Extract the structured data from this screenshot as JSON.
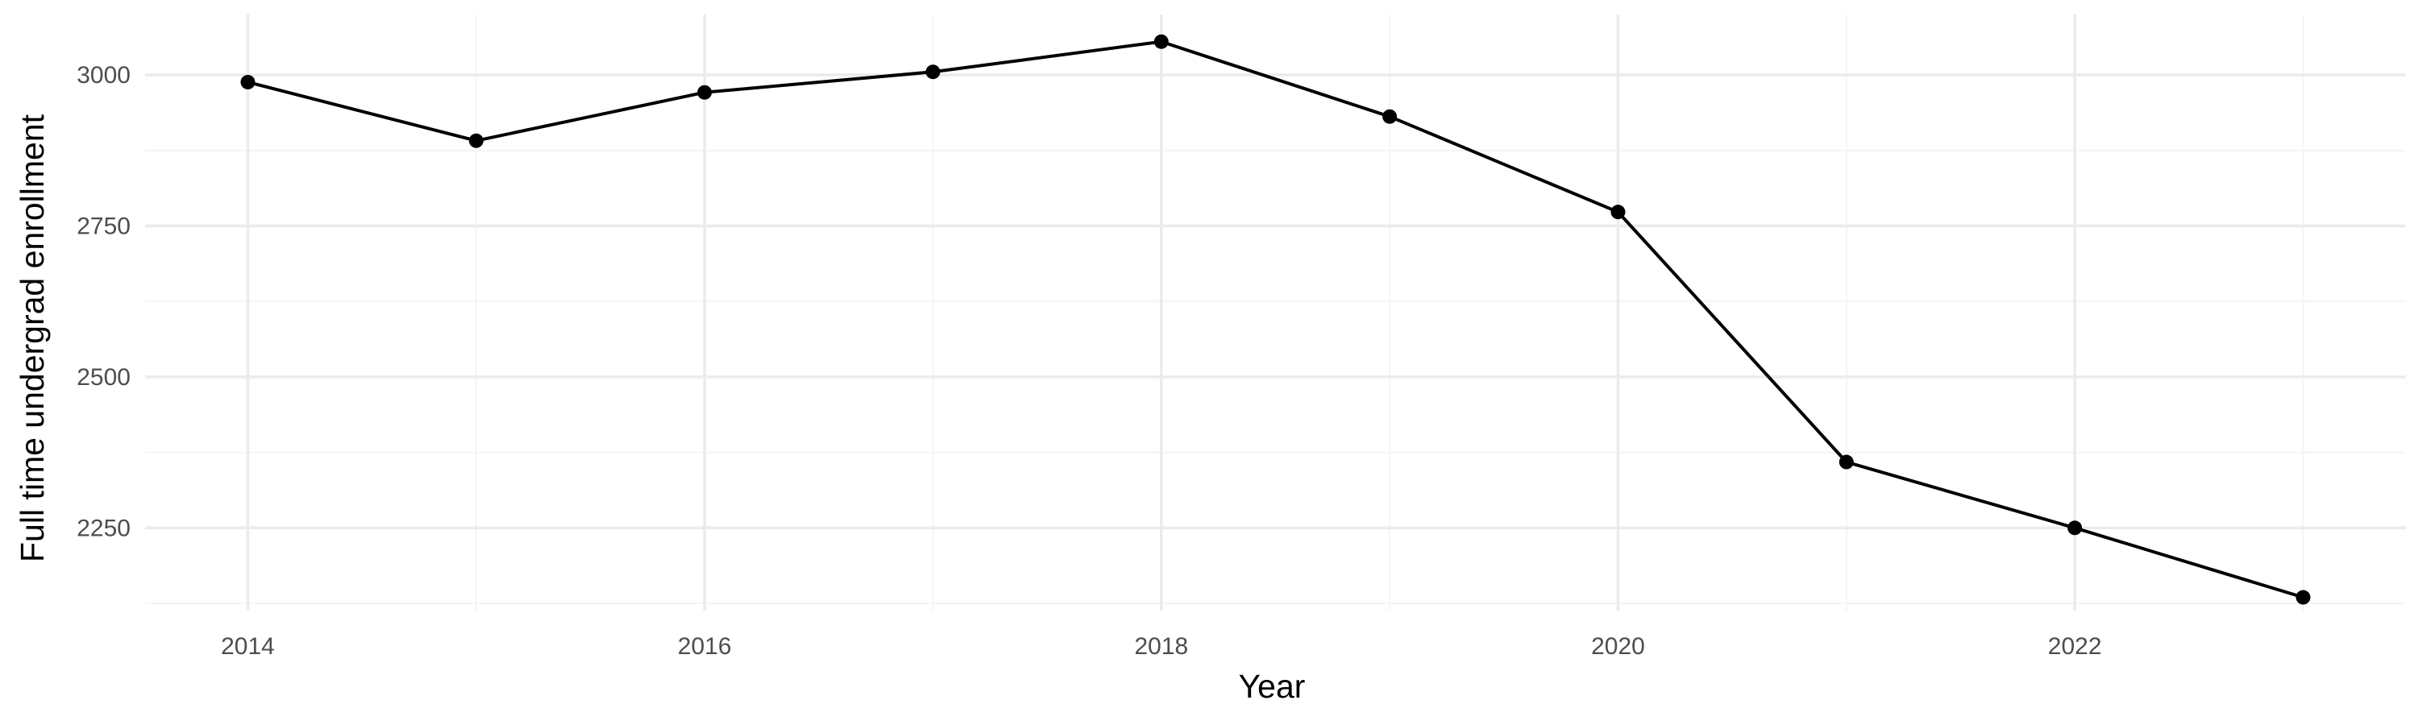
{
  "chart_data": {
    "type": "line",
    "title": "",
    "xlabel": "Year",
    "ylabel": "Full time undergrad enrollment",
    "x": [
      2014,
      2015,
      2016,
      2017,
      2018,
      2019,
      2020,
      2021,
      2022,
      2023
    ],
    "series": [
      {
        "values": [
          2988,
          2891,
          2971,
          3005,
          3055,
          2931,
          2773,
          2359,
          2250,
          2135
        ]
      }
    ],
    "xlim": [
      2013.55,
      2023.45
    ],
    "ylim": [
      2113,
      3100
    ],
    "xticks": [
      2014,
      2016,
      2018,
      2020,
      2022
    ],
    "xtick_labels": [
      "2014",
      "2016",
      "2018",
      "2020",
      "2022"
    ],
    "yticks": [
      2250,
      2500,
      2750,
      3000
    ],
    "ytick_labels": [
      "2250",
      "2500",
      "2750",
      "3000"
    ],
    "grid": true,
    "legend": "none",
    "colors": {
      "line": "#000000",
      "point": "#000000",
      "grid_major": "#ebebeb",
      "grid_minor": "#f4f4f4"
    }
  }
}
